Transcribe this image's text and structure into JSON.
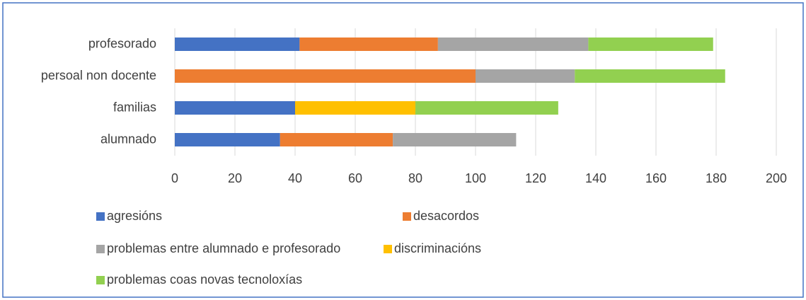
{
  "chart_data": {
    "type": "stacked_bar_horizontal",
    "categories": [
      "profesorado",
      "persoal non docente",
      "familias",
      "alumnado"
    ],
    "series": [
      {
        "name": "agresións",
        "color": "#4472c4",
        "values": [
          41.5,
          0,
          40,
          35
        ]
      },
      {
        "name": "desacordos",
        "color": "#ed7d31",
        "values": [
          46,
          100,
          0,
          37.5
        ]
      },
      {
        "name": "problemas entre alumnado e profesorado",
        "color": "#a5a5a5",
        "values": [
          50,
          33,
          0,
          41
        ]
      },
      {
        "name": "discriminacións",
        "color": "#ffc000",
        "values": [
          0,
          0,
          40,
          0
        ]
      },
      {
        "name": "problemas coas novas tecnoloxías",
        "color": "#92d050",
        "values": [
          41.5,
          50,
          47.5,
          0
        ]
      }
    ],
    "xlim": [
      0,
      200
    ],
    "xticks": [
      0,
      20,
      40,
      60,
      80,
      100,
      120,
      140,
      160,
      180,
      200
    ],
    "grid": true
  }
}
